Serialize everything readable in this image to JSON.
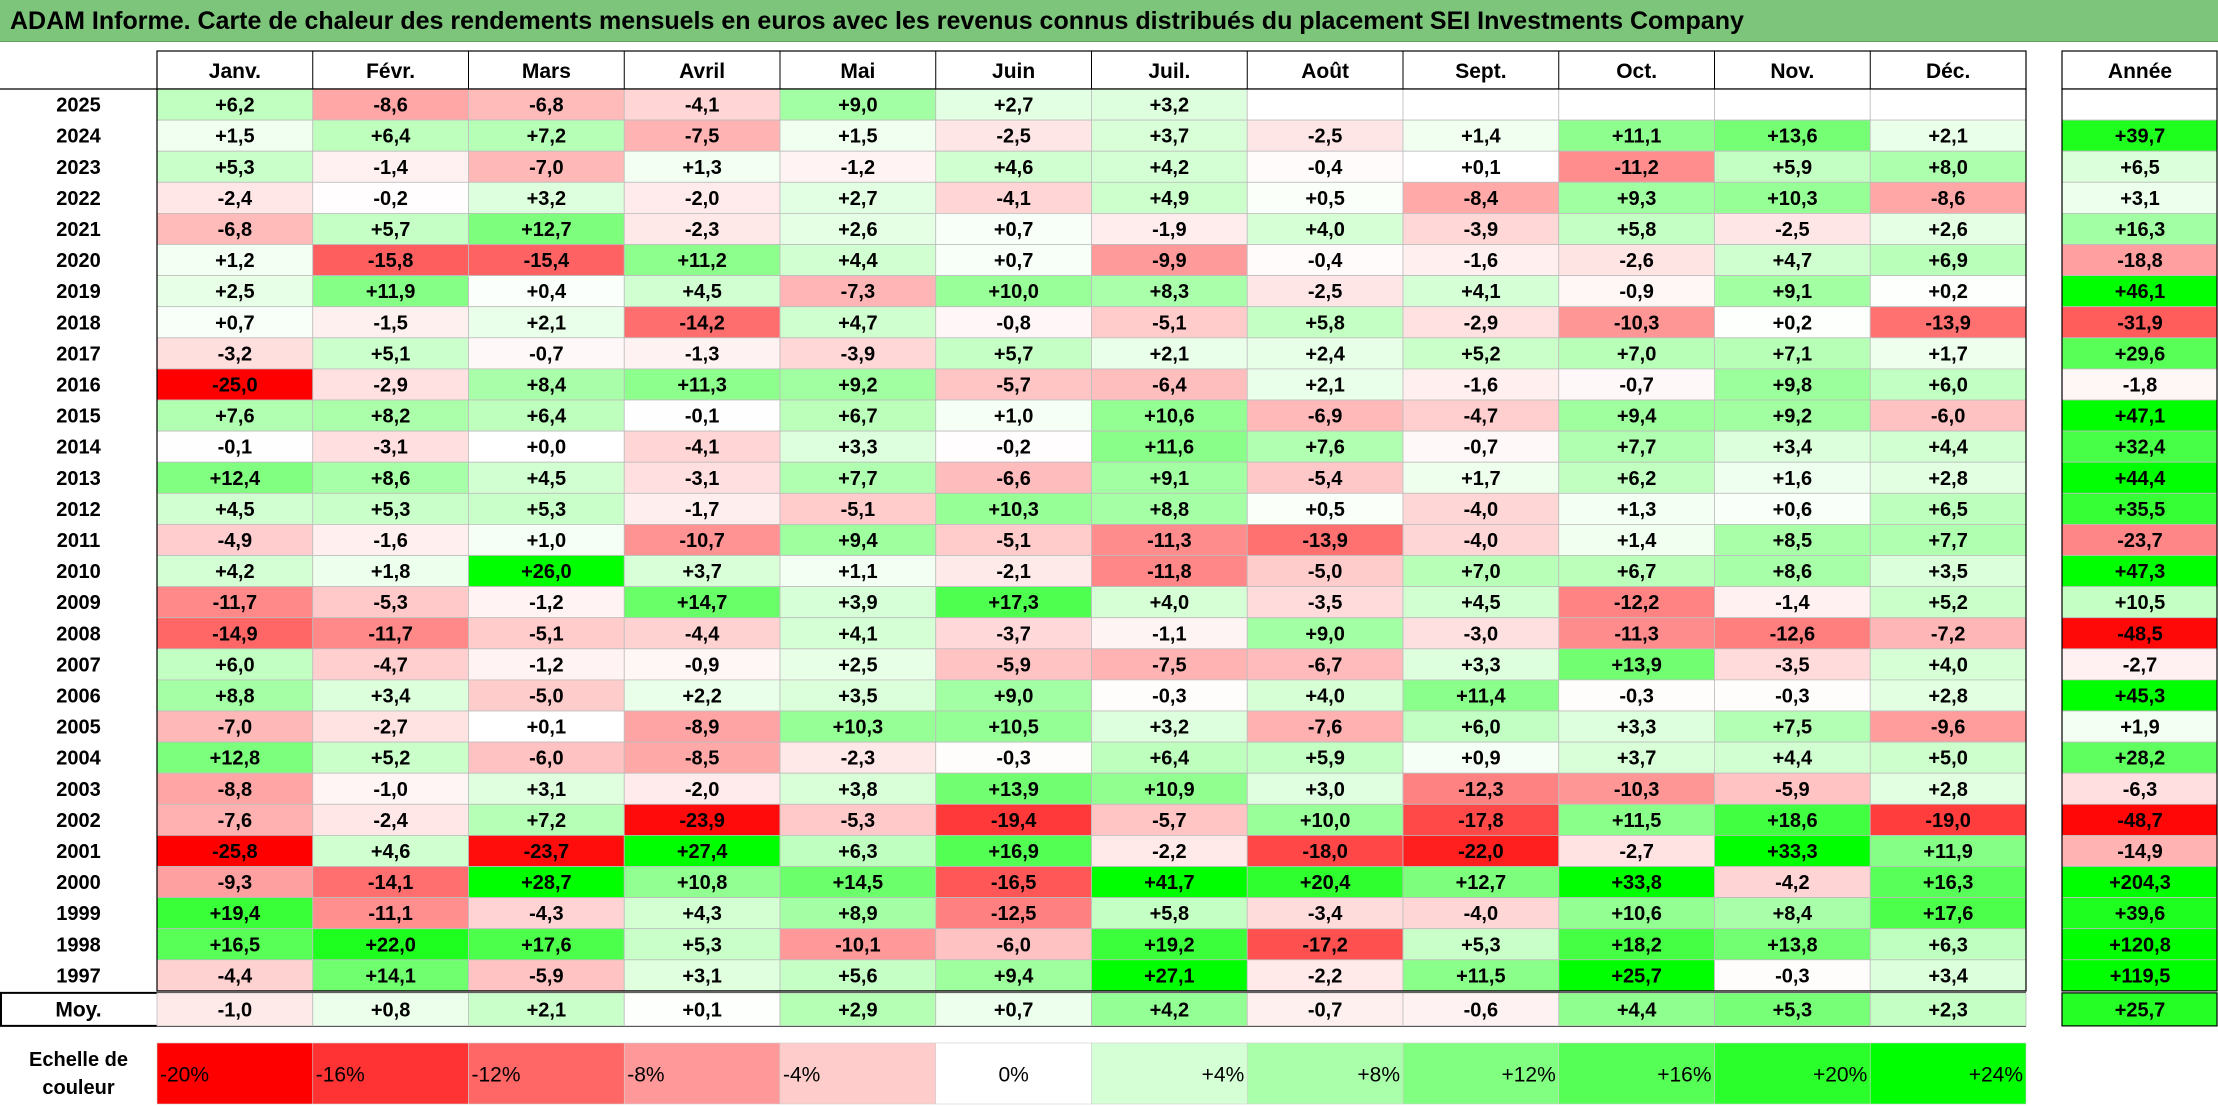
{
  "title": "ADAM Informe. Carte de chaleur des rendements mensuels en euros avec les revenus connus distribués du placement SEI Investments Company",
  "chart_data": {
    "type": "heatmap",
    "title": "ADAM Informe. Carte de chaleur des rendements mensuels en euros avec les revenus connus distribués du placement SEI Investments Company",
    "columns": [
      "Janv.",
      "Févr.",
      "Mars",
      "Avril",
      "Mai",
      "Juin",
      "Juil.",
      "Août",
      "Sept.",
      "Oct.",
      "Nov.",
      "Déc."
    ],
    "year_column_label": "Année",
    "rows": [
      {
        "year": "2025",
        "values": [
          "+6,2",
          "-8,6",
          "-6,8",
          "-4,1",
          "+9,0",
          "+2,7",
          "+3,2",
          "",
          "",
          "",
          "",
          ""
        ],
        "annual": ""
      },
      {
        "year": "2024",
        "values": [
          "+1,5",
          "+6,4",
          "+7,2",
          "-7,5",
          "+1,5",
          "-2,5",
          "+3,7",
          "-2,5",
          "+1,4",
          "+11,1",
          "+13,6",
          "+2,1"
        ],
        "annual": "+39,7"
      },
      {
        "year": "2023",
        "values": [
          "+5,3",
          "-1,4",
          "-7,0",
          "+1,3",
          "-1,2",
          "+4,6",
          "+4,2",
          "-0,4",
          "+0,1",
          "-11,2",
          "+5,9",
          "+8,0"
        ],
        "annual": "+6,5"
      },
      {
        "year": "2022",
        "values": [
          "-2,4",
          "-0,2",
          "+3,2",
          "-2,0",
          "+2,7",
          "-4,1",
          "+4,9",
          "+0,5",
          "-8,4",
          "+9,3",
          "+10,3",
          "-8,6"
        ],
        "annual": "+3,1"
      },
      {
        "year": "2021",
        "values": [
          "-6,8",
          "+5,7",
          "+12,7",
          "-2,3",
          "+2,6",
          "+0,7",
          "-1,9",
          "+4,0",
          "-3,9",
          "+5,8",
          "-2,5",
          "+2,6"
        ],
        "annual": "+16,3"
      },
      {
        "year": "2020",
        "values": [
          "+1,2",
          "-15,8",
          "-15,4",
          "+11,2",
          "+4,4",
          "+0,7",
          "-9,9",
          "-0,4",
          "-1,6",
          "-2,6",
          "+4,7",
          "+6,9"
        ],
        "annual": "-18,8"
      },
      {
        "year": "2019",
        "values": [
          "+2,5",
          "+11,9",
          "+0,4",
          "+4,5",
          "-7,3",
          "+10,0",
          "+8,3",
          "-2,5",
          "+4,1",
          "-0,9",
          "+9,1",
          "+0,2"
        ],
        "annual": "+46,1"
      },
      {
        "year": "2018",
        "values": [
          "+0,7",
          "-1,5",
          "+2,1",
          "-14,2",
          "+4,7",
          "-0,8",
          "-5,1",
          "+5,8",
          "-2,9",
          "-10,3",
          "+0,2",
          "-13,9"
        ],
        "annual": "-31,9"
      },
      {
        "year": "2017",
        "values": [
          "-3,2",
          "+5,1",
          "-0,7",
          "-1,3",
          "-3,9",
          "+5,7",
          "+2,1",
          "+2,4",
          "+5,2",
          "+7,0",
          "+7,1",
          "+1,7"
        ],
        "annual": "+29,6"
      },
      {
        "year": "2016",
        "values": [
          "-25,0",
          "-2,9",
          "+8,4",
          "+11,3",
          "+9,2",
          "-5,7",
          "-6,4",
          "+2,1",
          "-1,6",
          "-0,7",
          "+9,8",
          "+6,0"
        ],
        "annual": "-1,8"
      },
      {
        "year": "2015",
        "values": [
          "+7,6",
          "+8,2",
          "+6,4",
          "-0,1",
          "+6,7",
          "+1,0",
          "+10,6",
          "-6,9",
          "-4,7",
          "+9,4",
          "+9,2",
          "-6,0"
        ],
        "annual": "+47,1"
      },
      {
        "year": "2014",
        "values": [
          "-0,1",
          "-3,1",
          "+0,0",
          "-4,1",
          "+3,3",
          "-0,2",
          "+11,6",
          "+7,6",
          "-0,7",
          "+7,7",
          "+3,4",
          "+4,4"
        ],
        "annual": "+32,4"
      },
      {
        "year": "2013",
        "values": [
          "+12,4",
          "+8,6",
          "+4,5",
          "-3,1",
          "+7,7",
          "-6,6",
          "+9,1",
          "-5,4",
          "+1,7",
          "+6,2",
          "+1,6",
          "+2,8"
        ],
        "annual": "+44,4"
      },
      {
        "year": "2012",
        "values": [
          "+4,5",
          "+5,3",
          "+5,3",
          "-1,7",
          "-5,1",
          "+10,3",
          "+8,8",
          "+0,5",
          "-4,0",
          "+1,3",
          "+0,6",
          "+6,5"
        ],
        "annual": "+35,5"
      },
      {
        "year": "2011",
        "values": [
          "-4,9",
          "-1,6",
          "+1,0",
          "-10,7",
          "+9,4",
          "-5,1",
          "-11,3",
          "-13,9",
          "-4,0",
          "+1,4",
          "+8,5",
          "+7,7"
        ],
        "annual": "-23,7"
      },
      {
        "year": "2010",
        "values": [
          "+4,2",
          "+1,8",
          "+26,0",
          "+3,7",
          "+1,1",
          "-2,1",
          "-11,8",
          "-5,0",
          "+7,0",
          "+6,7",
          "+8,6",
          "+3,5"
        ],
        "annual": "+47,3"
      },
      {
        "year": "2009",
        "values": [
          "-11,7",
          "-5,3",
          "-1,2",
          "+14,7",
          "+3,9",
          "+17,3",
          "+4,0",
          "-3,5",
          "+4,5",
          "-12,2",
          "-1,4",
          "+5,2"
        ],
        "annual": "+10,5"
      },
      {
        "year": "2008",
        "values": [
          "-14,9",
          "-11,7",
          "-5,1",
          "-4,4",
          "+4,1",
          "-3,7",
          "-1,1",
          "+9,0",
          "-3,0",
          "-11,3",
          "-12,6",
          "-7,2"
        ],
        "annual": "-48,5"
      },
      {
        "year": "2007",
        "values": [
          "+6,0",
          "-4,7",
          "-1,2",
          "-0,9",
          "+2,5",
          "-5,9",
          "-7,5",
          "-6,7",
          "+3,3",
          "+13,9",
          "-3,5",
          "+4,0"
        ],
        "annual": "-2,7"
      },
      {
        "year": "2006",
        "values": [
          "+8,8",
          "+3,4",
          "-5,0",
          "+2,2",
          "+3,5",
          "+9,0",
          "-0,3",
          "+4,0",
          "+11,4",
          "-0,3",
          "-0,3",
          "+2,8"
        ],
        "annual": "+45,3"
      },
      {
        "year": "2005",
        "values": [
          "-7,0",
          "-2,7",
          "+0,1",
          "-8,9",
          "+10,3",
          "+10,5",
          "+3,2",
          "-7,6",
          "+6,0",
          "+3,3",
          "+7,5",
          "-9,6"
        ],
        "annual": "+1,9"
      },
      {
        "year": "2004",
        "values": [
          "+12,8",
          "+5,2",
          "-6,0",
          "-8,5",
          "-2,3",
          "-0,3",
          "+6,4",
          "+5,9",
          "+0,9",
          "+3,7",
          "+4,4",
          "+5,0"
        ],
        "annual": "+28,2"
      },
      {
        "year": "2003",
        "values": [
          "-8,8",
          "-1,0",
          "+3,1",
          "-2,0",
          "+3,8",
          "+13,9",
          "+10,9",
          "+3,0",
          "-12,3",
          "-10,3",
          "-5,9",
          "+2,8"
        ],
        "annual": "-6,3"
      },
      {
        "year": "2002",
        "values": [
          "-7,6",
          "-2,4",
          "+7,2",
          "-23,9",
          "-5,3",
          "-19,4",
          "-5,7",
          "+10,0",
          "-17,8",
          "+11,5",
          "+18,6",
          "-19,0"
        ],
        "annual": "-48,7"
      },
      {
        "year": "2001",
        "values": [
          "-25,8",
          "+4,6",
          "-23,7",
          "+27,4",
          "+6,3",
          "+16,9",
          "-2,2",
          "-18,0",
          "-22,0",
          "-2,7",
          "+33,3",
          "+11,9"
        ],
        "annual": "-14,9"
      },
      {
        "year": "2000",
        "values": [
          "-9,3",
          "-14,1",
          "+28,7",
          "+10,8",
          "+14,5",
          "-16,5",
          "+41,7",
          "+20,4",
          "+12,7",
          "+33,8",
          "-4,2",
          "+16,3"
        ],
        "annual": "+204,3"
      },
      {
        "year": "1999",
        "values": [
          "+19,4",
          "-11,1",
          "-4,3",
          "+4,3",
          "+8,9",
          "-12,5",
          "+5,8",
          "-3,4",
          "-4,0",
          "+10,6",
          "+8,4",
          "+17,6"
        ],
        "annual": "+39,6"
      },
      {
        "year": "1998",
        "values": [
          "+16,5",
          "+22,0",
          "+17,6",
          "+5,3",
          "-10,1",
          "-6,0",
          "+19,2",
          "-17,2",
          "+5,3",
          "+18,2",
          "+13,8",
          "+6,3"
        ],
        "annual": "+120,8"
      },
      {
        "year": "1997",
        "values": [
          "-4,4",
          "+14,1",
          "-5,9",
          "+3,1",
          "+5,6",
          "+9,4",
          "+27,1",
          "-2,2",
          "+11,5",
          "+25,7",
          "-0,3",
          "+3,4"
        ],
        "annual": "+119,5"
      }
    ],
    "average": {
      "label": "Moy.",
      "values": [
        "-1,0",
        "+0,8",
        "+2,1",
        "+0,1",
        "+2,9",
        "+0,7",
        "+4,2",
        "-0,7",
        "-0,6",
        "+4,4",
        "+5,3",
        "+2,3"
      ],
      "annual": "+25,7"
    },
    "scale": {
      "label": "Echelle de couleur",
      "labels": [
        "-20%",
        "-16%",
        "-12%",
        "-8%",
        "-4%",
        "0%",
        "+4%",
        "+8%",
        "+12%",
        "+16%",
        "+20%",
        "+24%"
      ],
      "values": [
        -20,
        -16,
        -12,
        -8,
        -4,
        0,
        4,
        8,
        12,
        16,
        20,
        24
      ]
    },
    "colors": {
      "negative_max": "#ff0000",
      "neutral": "#ffffff",
      "positive_max": "#00ff00",
      "title_bar": "#7cc57a"
    }
  }
}
